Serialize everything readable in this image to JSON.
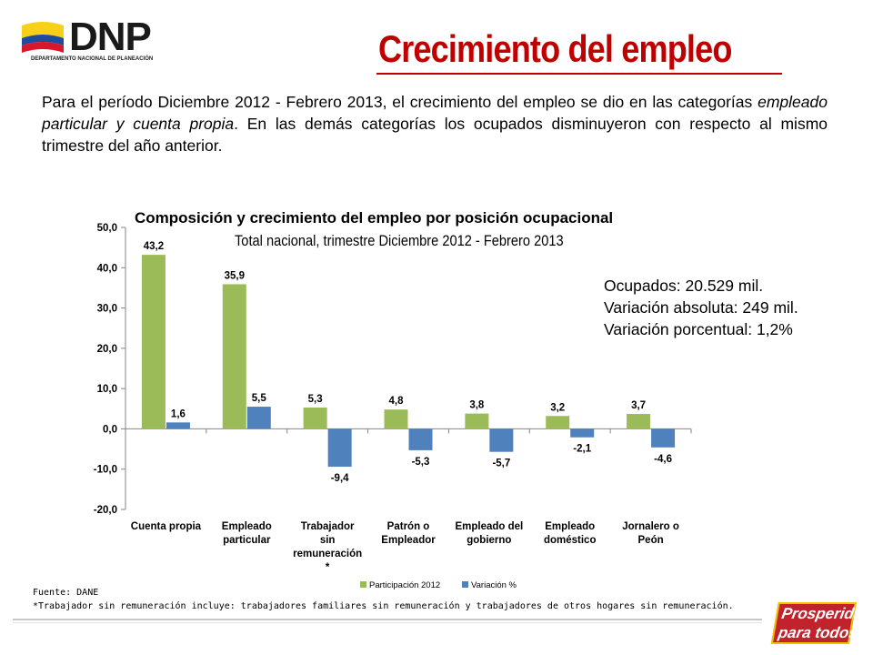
{
  "header": {
    "logo_text": "DNP",
    "logo_subtext": "DEPARTAMENTO NACIONAL DE PLANEACIÓN",
    "title": "Crecimiento del empleo",
    "flag_colors": [
      "#f8d117",
      "#1f4b9c",
      "#d6192a"
    ]
  },
  "intro": {
    "part1": "Para el período Diciembre 2012 -  Febrero 2013, el crecimiento del empleo se dio en las categorías ",
    "emph": "empleado particular y cuenta propia",
    "part2": ". En las demás categorías los ocupados disminuyeron con respecto al mismo trimestre del año anterior."
  },
  "summary": {
    "line1": "Ocupados: 20.529 mil.",
    "line2": "Variación absoluta: 249 mil.",
    "line3": "Variación porcentual: 1,2%"
  },
  "chart_data": {
    "type": "bar",
    "title": "Composición y crecimiento del empleo por posición ocupacional",
    "subtitle": "Total nacional, trimestre Diciembre 2012 -  Febrero 2013",
    "categories": [
      [
        "Cuenta propia"
      ],
      [
        "Empleado",
        "particular"
      ],
      [
        "Trabajador",
        "sin",
        "remuneración",
        "*"
      ],
      [
        "Patrón o",
        "Empleador"
      ],
      [
        "Empleado del",
        "gobierno"
      ],
      [
        "Empleado",
        "doméstico"
      ],
      [
        "Jornalero o",
        "Peón"
      ]
    ],
    "series": [
      {
        "name": "Participación 2012",
        "color": "#9bbb59",
        "values": [
          43.2,
          35.9,
          5.3,
          4.8,
          3.8,
          3.2,
          3.7
        ],
        "labels": [
          "43,2",
          "35,9",
          "5,3",
          "4,8",
          "3,8",
          "3,2",
          "3,7"
        ]
      },
      {
        "name": "Variación %",
        "color": "#4f81bd",
        "values": [
          1.6,
          5.5,
          -9.4,
          -5.3,
          -5.7,
          -2.1,
          -4.6
        ],
        "labels": [
          "1,6",
          "5,5",
          "-9,4",
          "-5,3",
          "-5,7",
          "-2,1",
          "-4,6"
        ]
      }
    ],
    "ylim": [
      -20,
      50
    ],
    "yticks": [
      50,
      40,
      30,
      20,
      10,
      0,
      -10,
      -20
    ],
    "ytick_labels": [
      "50,0",
      "40,0",
      "30,0",
      "20,0",
      "10,0",
      "0,0",
      "-10,0",
      "-20,0"
    ],
    "grid": false,
    "legend": "bottom"
  },
  "source": {
    "line1": "Fuente: DANE",
    "line2": "*Trabajador sin remuneración incluye: trabajadores familiares sin remuneración y trabajadores de otros  hogares sin remuneración."
  },
  "badge": {
    "line1": "Prosperidad",
    "line2": "para todos"
  }
}
